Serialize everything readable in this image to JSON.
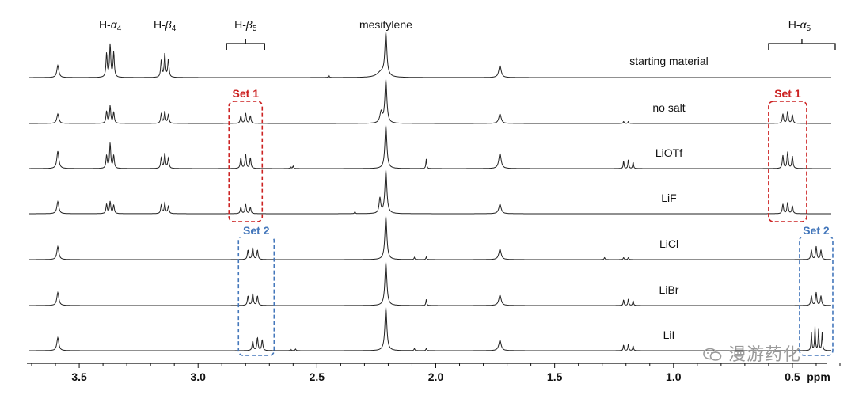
{
  "chart_data": {
    "type": "line",
    "x_axis": {
      "label": "ppm",
      "reversed": true,
      "range": [
        3.72,
        0.29
      ],
      "ticks": [
        "3.5",
        "3.0",
        "2.5",
        "2.0",
        "1.5",
        "1.0",
        "0.5"
      ]
    },
    "grid": false,
    "legend": "none",
    "peak_labels": [
      {
        "text": "H-α₄",
        "x": 3.37
      },
      {
        "text": "H-β₄",
        "x": 3.14
      },
      {
        "text": "H-β₅",
        "x": 2.8
      },
      {
        "text": "mesitylene",
        "x": 2.21
      },
      {
        "text": "H-α₅",
        "x": 0.47
      }
    ],
    "series": [
      {
        "name": "starting material",
        "peaks": [
          {
            "x": 3.59,
            "h": 0.28,
            "w": 0.005
          },
          {
            "x": 3.385,
            "h": 0.55,
            "w": 0.003
          },
          {
            "x": 3.37,
            "h": 0.75,
            "w": 0.003
          },
          {
            "x": 3.355,
            "h": 0.58,
            "w": 0.003
          },
          {
            "x": 3.155,
            "h": 0.4,
            "w": 0.003
          },
          {
            "x": 3.14,
            "h": 0.55,
            "w": 0.003
          },
          {
            "x": 3.125,
            "h": 0.42,
            "w": 0.003
          },
          {
            "x": 2.45,
            "h": 0.06,
            "w": 0.002
          },
          {
            "x": 2.21,
            "h": 1.0,
            "w": 0.005
          },
          {
            "x": 2.23,
            "h": 0.12,
            "w": 0.02
          },
          {
            "x": 1.73,
            "h": 0.28,
            "w": 0.006
          }
        ]
      },
      {
        "name": "no salt",
        "peaks": [
          {
            "x": 3.59,
            "h": 0.22,
            "w": 0.005
          },
          {
            "x": 3.385,
            "h": 0.28,
            "w": 0.003
          },
          {
            "x": 3.37,
            "h": 0.4,
            "w": 0.003
          },
          {
            "x": 3.355,
            "h": 0.26,
            "w": 0.003
          },
          {
            "x": 3.155,
            "h": 0.22,
            "w": 0.003
          },
          {
            "x": 3.14,
            "h": 0.28,
            "w": 0.003
          },
          {
            "x": 3.125,
            "h": 0.2,
            "w": 0.003
          },
          {
            "x": 2.82,
            "h": 0.18,
            "w": 0.003
          },
          {
            "x": 2.8,
            "h": 0.24,
            "w": 0.003
          },
          {
            "x": 2.78,
            "h": 0.18,
            "w": 0.003
          },
          {
            "x": 2.23,
            "h": 0.25,
            "w": 0.006
          },
          {
            "x": 2.21,
            "h": 1.0,
            "w": 0.005
          },
          {
            "x": 1.73,
            "h": 0.22,
            "w": 0.006
          },
          {
            "x": 1.21,
            "h": 0.05,
            "w": 0.002
          },
          {
            "x": 1.19,
            "h": 0.05,
            "w": 0.002
          },
          {
            "x": 0.54,
            "h": 0.22,
            "w": 0.003
          },
          {
            "x": 0.52,
            "h": 0.28,
            "w": 0.003
          },
          {
            "x": 0.5,
            "h": 0.2,
            "w": 0.003
          }
        ]
      },
      {
        "name": "LiOTf",
        "peaks": [
          {
            "x": 3.59,
            "h": 0.4,
            "w": 0.005
          },
          {
            "x": 3.385,
            "h": 0.3,
            "w": 0.003
          },
          {
            "x": 3.37,
            "h": 0.58,
            "w": 0.003
          },
          {
            "x": 3.355,
            "h": 0.3,
            "w": 0.003
          },
          {
            "x": 3.155,
            "h": 0.25,
            "w": 0.003
          },
          {
            "x": 3.14,
            "h": 0.35,
            "w": 0.003
          },
          {
            "x": 3.125,
            "h": 0.24,
            "w": 0.003
          },
          {
            "x": 2.82,
            "h": 0.25,
            "w": 0.003
          },
          {
            "x": 2.8,
            "h": 0.33,
            "w": 0.003
          },
          {
            "x": 2.78,
            "h": 0.25,
            "w": 0.003
          },
          {
            "x": 2.61,
            "h": 0.05,
            "w": 0.002
          },
          {
            "x": 2.6,
            "h": 0.06,
            "w": 0.002
          },
          {
            "x": 2.21,
            "h": 1.0,
            "w": 0.005
          },
          {
            "x": 2.04,
            "h": 0.22,
            "w": 0.002
          },
          {
            "x": 1.73,
            "h": 0.35,
            "w": 0.006
          },
          {
            "x": 1.21,
            "h": 0.18,
            "w": 0.002
          },
          {
            "x": 1.19,
            "h": 0.22,
            "w": 0.002
          },
          {
            "x": 1.17,
            "h": 0.16,
            "w": 0.002
          },
          {
            "x": 0.54,
            "h": 0.3,
            "w": 0.003
          },
          {
            "x": 0.52,
            "h": 0.38,
            "w": 0.003
          },
          {
            "x": 0.5,
            "h": 0.28,
            "w": 0.003
          }
        ]
      },
      {
        "name": "LiF",
        "peaks": [
          {
            "x": 3.59,
            "h": 0.28,
            "w": 0.005
          },
          {
            "x": 3.385,
            "h": 0.22,
            "w": 0.003
          },
          {
            "x": 3.37,
            "h": 0.28,
            "w": 0.003
          },
          {
            "x": 3.355,
            "h": 0.2,
            "w": 0.003
          },
          {
            "x": 3.155,
            "h": 0.2,
            "w": 0.003
          },
          {
            "x": 3.14,
            "h": 0.24,
            "w": 0.003
          },
          {
            "x": 3.125,
            "h": 0.17,
            "w": 0.003
          },
          {
            "x": 2.82,
            "h": 0.15,
            "w": 0.003
          },
          {
            "x": 2.8,
            "h": 0.22,
            "w": 0.003
          },
          {
            "x": 2.78,
            "h": 0.15,
            "w": 0.003
          },
          {
            "x": 2.34,
            "h": 0.05,
            "w": 0.002
          },
          {
            "x": 2.235,
            "h": 0.35,
            "w": 0.004
          },
          {
            "x": 2.21,
            "h": 1.0,
            "w": 0.005
          },
          {
            "x": 1.73,
            "h": 0.22,
            "w": 0.006
          },
          {
            "x": 0.54,
            "h": 0.22,
            "w": 0.003
          },
          {
            "x": 0.52,
            "h": 0.26,
            "w": 0.003
          },
          {
            "x": 0.5,
            "h": 0.18,
            "w": 0.003
          }
        ]
      },
      {
        "name": "LiCl",
        "peaks": [
          {
            "x": 3.59,
            "h": 0.3,
            "w": 0.005
          },
          {
            "x": 2.79,
            "h": 0.22,
            "w": 0.003
          },
          {
            "x": 2.77,
            "h": 0.28,
            "w": 0.003
          },
          {
            "x": 2.75,
            "h": 0.22,
            "w": 0.003
          },
          {
            "x": 2.21,
            "h": 1.0,
            "w": 0.005
          },
          {
            "x": 2.09,
            "h": 0.05,
            "w": 0.002
          },
          {
            "x": 2.04,
            "h": 0.06,
            "w": 0.002
          },
          {
            "x": 1.73,
            "h": 0.24,
            "w": 0.006
          },
          {
            "x": 1.29,
            "h": 0.05,
            "w": 0.002
          },
          {
            "x": 1.21,
            "h": 0.05,
            "w": 0.002
          },
          {
            "x": 1.19,
            "h": 0.05,
            "w": 0.002
          },
          {
            "x": 0.42,
            "h": 0.22,
            "w": 0.003
          },
          {
            "x": 0.4,
            "h": 0.3,
            "w": 0.003
          },
          {
            "x": 0.38,
            "h": 0.22,
            "w": 0.003
          }
        ]
      },
      {
        "name": "LiBr",
        "peaks": [
          {
            "x": 3.59,
            "h": 0.3,
            "w": 0.005
          },
          {
            "x": 2.79,
            "h": 0.22,
            "w": 0.003
          },
          {
            "x": 2.77,
            "h": 0.28,
            "w": 0.003
          },
          {
            "x": 2.75,
            "h": 0.22,
            "w": 0.003
          },
          {
            "x": 2.21,
            "h": 1.0,
            "w": 0.005
          },
          {
            "x": 2.04,
            "h": 0.14,
            "w": 0.002
          },
          {
            "x": 1.73,
            "h": 0.24,
            "w": 0.006
          },
          {
            "x": 1.21,
            "h": 0.14,
            "w": 0.002
          },
          {
            "x": 1.19,
            "h": 0.16,
            "w": 0.002
          },
          {
            "x": 1.17,
            "h": 0.12,
            "w": 0.002
          },
          {
            "x": 0.42,
            "h": 0.22,
            "w": 0.003
          },
          {
            "x": 0.4,
            "h": 0.3,
            "w": 0.003
          },
          {
            "x": 0.38,
            "h": 0.22,
            "w": 0.003
          }
        ]
      },
      {
        "name": "LiI",
        "peaks": [
          {
            "x": 3.59,
            "h": 0.3,
            "w": 0.005
          },
          {
            "x": 2.77,
            "h": 0.22,
            "w": 0.003
          },
          {
            "x": 2.75,
            "h": 0.3,
            "w": 0.003
          },
          {
            "x": 2.73,
            "h": 0.25,
            "w": 0.003
          },
          {
            "x": 2.61,
            "h": 0.04,
            "w": 0.002
          },
          {
            "x": 2.59,
            "h": 0.04,
            "w": 0.002
          },
          {
            "x": 2.21,
            "h": 1.0,
            "w": 0.005
          },
          {
            "x": 2.09,
            "h": 0.05,
            "w": 0.002
          },
          {
            "x": 2.04,
            "h": 0.05,
            "w": 0.002
          },
          {
            "x": 1.73,
            "h": 0.24,
            "w": 0.006
          },
          {
            "x": 1.21,
            "h": 0.14,
            "w": 0.002
          },
          {
            "x": 1.19,
            "h": 0.16,
            "w": 0.002
          },
          {
            "x": 1.17,
            "h": 0.12,
            "w": 0.002
          },
          {
            "x": 0.42,
            "h": 0.42,
            "w": 0.002
          },
          {
            "x": 0.405,
            "h": 0.55,
            "w": 0.002
          },
          {
            "x": 0.39,
            "h": 0.5,
            "w": 0.002
          },
          {
            "x": 0.375,
            "h": 0.42,
            "w": 0.002
          }
        ]
      }
    ],
    "highlights": [
      {
        "label": "Set 1",
        "color": "#cc2222",
        "regions": [
          {
            "from": 2.87,
            "to": 2.73
          },
          {
            "from": 0.6,
            "to": 0.44
          }
        ],
        "series_range": [
          "no salt",
          "LiF"
        ]
      },
      {
        "label": "Set 2",
        "color": "#4477bb",
        "regions": [
          {
            "from": 2.83,
            "to": 2.68
          },
          {
            "from": 0.47,
            "to": 0.33
          }
        ],
        "series_range": [
          "LiCl",
          "LiI"
        ]
      }
    ]
  },
  "colors": {
    "spectrum": "#222222",
    "set1": "#cc2222",
    "set2": "#4477bb"
  },
  "watermark": {
    "icon": "wechat-icon",
    "text": "漫游药化"
  }
}
